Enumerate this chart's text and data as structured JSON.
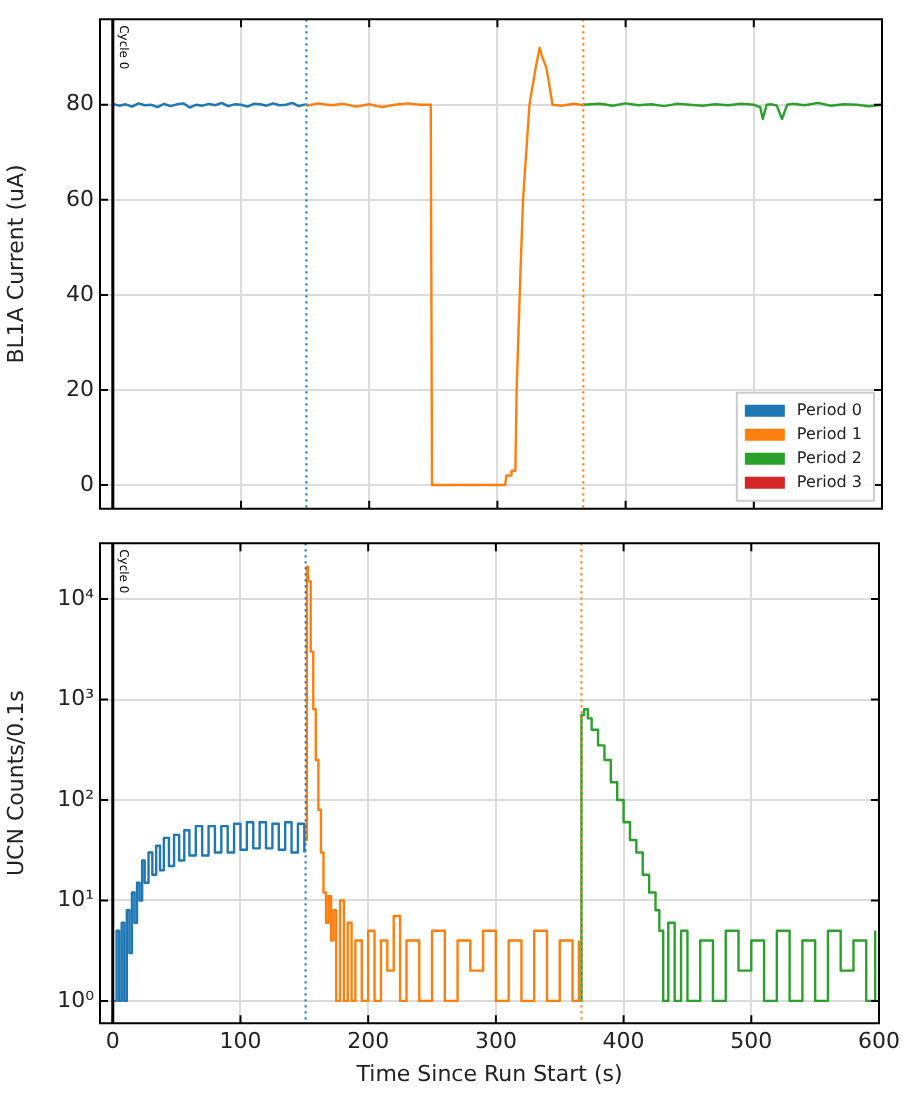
{
  "chart_data": [
    {
      "type": "line",
      "ylabel": "BL1A Current (uA)",
      "xlim": [
        -10,
        600
      ],
      "xticks": [
        0,
        100,
        200,
        300,
        400,
        500,
        600
      ],
      "ylim": [
        -5,
        98
      ],
      "yticks": [
        0,
        20,
        40,
        60,
        80
      ],
      "grid": true,
      "tick_labels": "y",
      "legend": "bottom right",
      "marker": "none",
      "ref_lines": [
        {
          "axis": "x",
          "value": 0,
          "label": "Cycle 0",
          "color": "#000000",
          "line_style": "solid"
        },
        {
          "axis": "x",
          "value": 151,
          "color": "#1f77b4",
          "line_style": "dotted"
        },
        {
          "axis": "x",
          "value": 367,
          "color": "#ff7f0e",
          "line_style": "dotted"
        }
      ],
      "series": [
        {
          "name": "Period 0",
          "color": "#1f77b4",
          "x": [
            0,
            5,
            10,
            15,
            20,
            25,
            30,
            35,
            40,
            45,
            50,
            55,
            60,
            65,
            70,
            75,
            80,
            85,
            90,
            95,
            100,
            105,
            110,
            115,
            120,
            125,
            130,
            135,
            140,
            145,
            150
          ],
          "values": [
            80.2,
            79.8,
            80.1,
            79.6,
            80.3,
            79.9,
            80,
            79.5,
            80.2,
            79.7,
            80.1,
            80.3,
            79.4,
            80,
            79.8,
            80.2,
            79.9,
            80.4,
            79.7,
            80.1,
            80,
            79.6,
            80.2,
            80.1,
            79.8,
            80.3,
            79.9,
            80,
            80.4,
            79.7,
            80.1
          ]
        },
        {
          "name": "Period 1",
          "color": "#ff7f0e",
          "x": [
            151,
            160,
            170,
            180,
            190,
            200,
            210,
            220,
            230,
            240,
            248,
            249,
            260,
            280,
            300,
            306,
            307,
            310,
            311,
            314,
            315,
            318,
            320,
            325,
            330,
            333,
            335,
            338,
            340,
            343,
            350,
            360,
            367
          ],
          "values": [
            79.8,
            80.3,
            79.9,
            80.2,
            79.6,
            80.1,
            79.5,
            80,
            80.3,
            80,
            80,
            0,
            0,
            0,
            0,
            0,
            2,
            2,
            3,
            3,
            20,
            45,
            60,
            80,
            88,
            92,
            90,
            88,
            85,
            80,
            79.8,
            80.2,
            79.9
          ]
        },
        {
          "name": "Period 2",
          "color": "#2ca02c",
          "x": [
            367,
            380,
            390,
            400,
            410,
            420,
            430,
            440,
            450,
            460,
            470,
            480,
            490,
            500,
            505,
            507,
            510,
            514,
            518,
            522,
            526,
            530,
            540,
            550,
            560,
            570,
            580,
            590,
            600
          ],
          "values": [
            80,
            80.2,
            79.8,
            80.3,
            79.9,
            80.1,
            79.7,
            80.2,
            80,
            79.8,
            80.1,
            79.9,
            80.2,
            80,
            79.5,
            77,
            80,
            80.1,
            79.8,
            77,
            80,
            80.2,
            79.9,
            80.4,
            79.8,
            80.1,
            80,
            79.7,
            80
          ]
        },
        {
          "name": "Period 3",
          "color": "#d62728"
        }
      ]
    },
    {
      "type": "step",
      "xlabel": "Time Since Run Start (s)",
      "ylabel": "UCN Counts/0.1s",
      "log": "y",
      "xlim": [
        -10,
        600
      ],
      "xticks": [
        0,
        100,
        200,
        300,
        400,
        500,
        600
      ],
      "ylim": [
        0.6,
        36000
      ],
      "yticks": [
        {
          "value": 1,
          "label": "10⁰"
        },
        {
          "value": 10,
          "label": "10¹"
        },
        {
          "value": 100,
          "label": "10²"
        },
        {
          "value": 1000,
          "label": "10³"
        },
        {
          "value": 10000,
          "label": "10⁴"
        }
      ],
      "grid": true,
      "legend": false,
      "ref_lines": [
        {
          "axis": "x",
          "value": 0,
          "label": "Cycle 0",
          "color": "#000000",
          "line_style": "solid"
        },
        {
          "axis": "x",
          "value": 151,
          "color": "#1f77b4",
          "line_style": "dotted"
        },
        {
          "axis": "x",
          "value": 367,
          "color": "#ff7f0e",
          "line_style": "dotted"
        }
      ],
      "series": [
        {
          "color": "#1f77b4",
          "x": [
            1,
            3,
            5,
            7,
            9,
            11,
            13,
            15,
            17,
            19,
            21,
            23,
            25,
            28,
            31,
            34,
            37,
            40,
            44,
            48,
            52,
            56,
            60,
            65,
            70,
            75,
            80,
            85,
            90,
            95,
            100,
            105,
            110,
            115,
            120,
            125,
            130,
            135,
            140,
            145,
            150
          ],
          "values": [
            1,
            5,
            1,
            6,
            1,
            8,
            3,
            12,
            6,
            15,
            10,
            25,
            15,
            30,
            18,
            35,
            20,
            42,
            22,
            45,
            25,
            50,
            28,
            55,
            28,
            55,
            30,
            55,
            30,
            58,
            32,
            60,
            33,
            60,
            33,
            58,
            32,
            60,
            30,
            58,
            30
          ]
        },
        {
          "color": "#ff7f0e",
          "x": [
            151,
            152,
            153,
            155,
            157,
            159,
            161,
            163,
            165,
            167,
            169,
            171,
            173,
            175,
            178,
            181,
            184,
            187,
            190,
            195,
            200,
            205,
            210,
            215,
            220,
            225,
            230,
            240,
            250,
            260,
            270,
            280,
            290,
            300,
            310,
            320,
            330,
            340,
            350,
            360,
            365
          ],
          "values": [
            40,
            21000,
            15000,
            3000,
            800,
            250,
            80,
            30,
            12,
            6,
            11,
            4,
            8,
            1,
            10,
            1,
            6,
            1,
            4,
            1,
            5,
            1,
            4,
            2,
            7,
            1,
            4,
            1,
            5,
            1,
            4,
            2,
            5,
            1,
            4,
            1,
            5,
            1,
            4,
            1,
            4
          ]
        },
        {
          "color": "#2ca02c",
          "x": [
            366,
            367,
            369,
            372,
            375,
            380,
            385,
            390,
            395,
            400,
            405,
            410,
            415,
            420,
            425,
            428,
            431,
            435,
            440,
            445,
            450,
            460,
            470,
            480,
            490,
            500,
            510,
            520,
            530,
            540,
            550,
            560,
            570,
            580,
            590,
            597
          ],
          "values": [
            1,
            700,
            800,
            650,
            500,
            350,
            250,
            150,
            100,
            60,
            40,
            30,
            18,
            12,
            8,
            5,
            1,
            6,
            1,
            5,
            1,
            4,
            1,
            5,
            2,
            4,
            1,
            5,
            1,
            4,
            1,
            5,
            2,
            4,
            1,
            5
          ]
        }
      ]
    }
  ]
}
